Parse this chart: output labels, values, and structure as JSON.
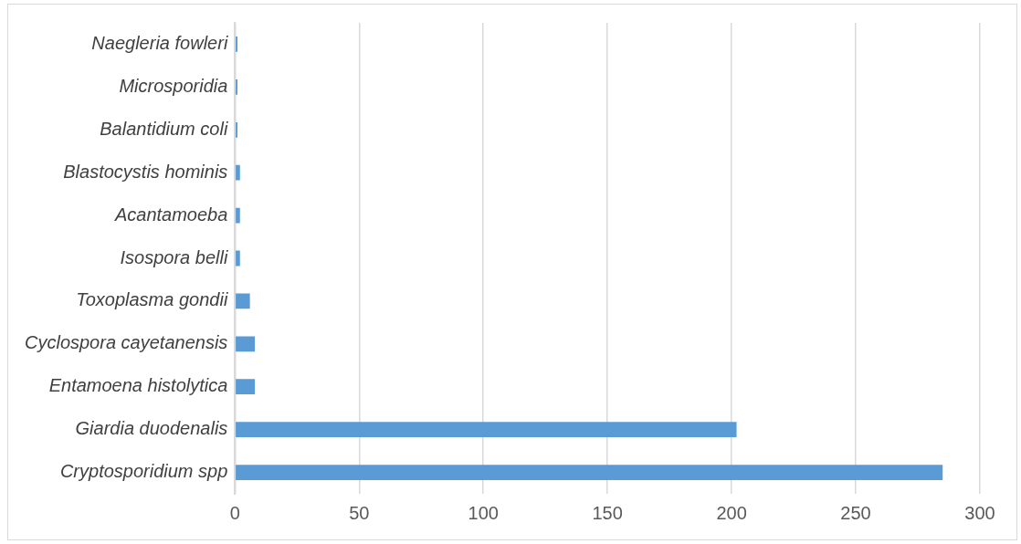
{
  "chart_data": {
    "type": "bar",
    "orientation": "horizontal",
    "categories": [
      "Naegleria fowleri",
      "Microsporidia",
      "Balantidium coli",
      "Blastocystis hominis",
      "Acantamoeba",
      "Isospora belli",
      "Toxoplasma gondii",
      "Cyclospora cayetanensis",
      "Entamoena histolytica",
      "Giardia duodenalis",
      "Cryptosporidium spp"
    ],
    "values": [
      1,
      1,
      1,
      2,
      2,
      2,
      6,
      8,
      8,
      202,
      285
    ],
    "color": "#5b9bd5",
    "xlim": [
      0,
      300
    ],
    "xticks": [
      0,
      50,
      100,
      150,
      200,
      250,
      300
    ],
    "grid": "x",
    "legend": false
  }
}
